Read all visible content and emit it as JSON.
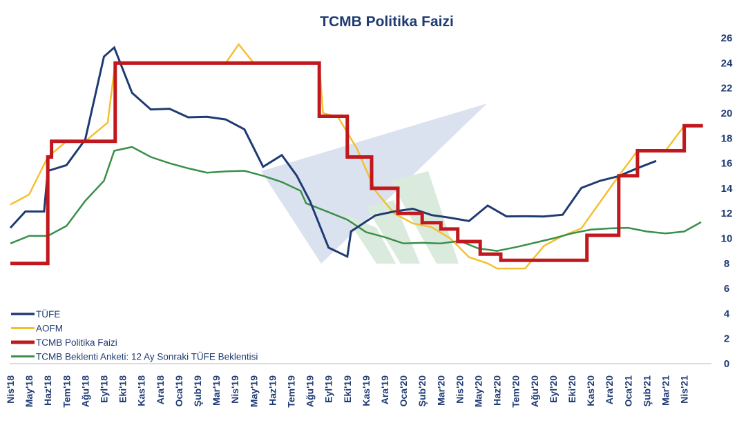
{
  "chart_data": {
    "type": "line",
    "title": "TCMB Politika Faizi",
    "xlabel": "",
    "ylabel": "",
    "ylim": [
      0,
      26
    ],
    "y_ticks": [
      "0",
      "2",
      "4",
      "6",
      "8",
      "10",
      "12",
      "14",
      "16",
      "18",
      "20",
      "22",
      "24",
      "26"
    ],
    "y_axis_side": "right",
    "categories": [
      "Nis'18",
      "May'18",
      "Haz'18",
      "Tem'18",
      "Ağu'18",
      "Eyl'18",
      "Eki'18",
      "Kas'18",
      "Ara'18",
      "Oca'19",
      "Şub'19",
      "Mar'19",
      "Nis'19",
      "May'19",
      "Haz'19",
      "Tem'19",
      "Ağu'19",
      "Eyl'19",
      "Eki'19",
      "Kas'19",
      "Ara'19",
      "Oca'20",
      "Şub'20",
      "Mar'20",
      "Nis'20",
      "May'20",
      "Haz'20",
      "Tem'20",
      "Ağu'20",
      "Eyl'20",
      "Eki'20",
      "Kas'20",
      "Ara'20",
      "Oca'21",
      "Şub'21",
      "Mar'21",
      "Nis'21"
    ],
    "grid": false,
    "legend_position": "bottom-left",
    "series": [
      {
        "name": "TÜFE",
        "color": "#1f3b73",
        "stroke_width": 3,
        "points": [
          [
            0,
            10.85
          ],
          [
            0.8,
            12.15
          ],
          [
            1.8,
            12.15
          ],
          [
            2.0,
            15.39
          ],
          [
            3.0,
            15.85
          ],
          [
            4.0,
            17.9
          ],
          [
            5.0,
            24.52
          ],
          [
            5.55,
            25.24
          ],
          [
            6.5,
            21.62
          ],
          [
            7.5,
            20.3
          ],
          [
            8.5,
            20.35
          ],
          [
            9.5,
            19.67
          ],
          [
            10.5,
            19.71
          ],
          [
            11.5,
            19.5
          ],
          [
            12.5,
            18.71
          ],
          [
            13.5,
            15.72
          ],
          [
            14.5,
            16.65
          ],
          [
            15.3,
            15.01
          ],
          [
            16.0,
            13.0
          ],
          [
            17.0,
            9.26
          ],
          [
            18.0,
            8.55
          ],
          [
            18.2,
            10.56
          ],
          [
            19.5,
            11.84
          ],
          [
            20.5,
            12.15
          ],
          [
            21.5,
            12.37
          ],
          [
            22.5,
            11.86
          ],
          [
            23.5,
            11.65
          ],
          [
            24.5,
            11.39
          ],
          [
            25.5,
            12.62
          ],
          [
            26.5,
            11.76
          ],
          [
            27.5,
            11.77
          ],
          [
            28.5,
            11.75
          ],
          [
            29.5,
            11.89
          ],
          [
            30.5,
            14.03
          ],
          [
            31.5,
            14.6
          ],
          [
            32.5,
            14.97
          ],
          [
            33.5,
            15.61
          ],
          [
            34.5,
            16.19
          ]
        ]
      },
      {
        "name": "AOFM",
        "color": "#f5c02f",
        "stroke_width": 2.5,
        "points": [
          [
            0,
            12.7
          ],
          [
            1,
            13.5
          ],
          [
            2.0,
            16.5
          ],
          [
            3.0,
            17.75
          ],
          [
            4.0,
            17.75
          ],
          [
            5.2,
            19.25
          ],
          [
            5.6,
            24.0
          ],
          [
            11.5,
            24.0
          ],
          [
            12.2,
            25.5
          ],
          [
            13.0,
            24.0
          ],
          [
            16.5,
            24.0
          ],
          [
            16.7,
            20.0
          ],
          [
            17.5,
            19.7
          ],
          [
            18.5,
            17.2
          ],
          [
            19.5,
            13.8
          ],
          [
            20.5,
            12.0
          ],
          [
            21.5,
            11.2
          ],
          [
            22.5,
            10.9
          ],
          [
            23.5,
            10.0
          ],
          [
            24.5,
            8.5
          ],
          [
            25.5,
            8.0
          ],
          [
            26.0,
            7.6
          ],
          [
            27.5,
            7.6
          ],
          [
            28.5,
            9.4
          ],
          [
            29.5,
            10.2
          ],
          [
            30.5,
            10.8
          ],
          [
            31.5,
            12.9
          ],
          [
            32.5,
            15.0
          ],
          [
            33.5,
            17.0
          ],
          [
            35.0,
            17.0
          ],
          [
            36.0,
            19.0
          ]
        ]
      },
      {
        "name": "TCMB Politika Faizi",
        "color": "#c0181c",
        "stroke_width": 5,
        "points": [
          [
            0,
            8.0
          ],
          [
            2.0,
            8.0
          ],
          [
            2.0,
            16.5
          ],
          [
            2.2,
            16.5
          ],
          [
            2.2,
            17.75
          ],
          [
            5.6,
            17.75
          ],
          [
            5.6,
            24.0
          ],
          [
            16.5,
            24.0
          ],
          [
            16.5,
            19.75
          ],
          [
            18.0,
            19.75
          ],
          [
            18.0,
            16.5
          ],
          [
            19.3,
            16.5
          ],
          [
            19.3,
            14.0
          ],
          [
            20.7,
            14.0
          ],
          [
            20.7,
            12.0
          ],
          [
            22.0,
            12.0
          ],
          [
            22.0,
            11.25
          ],
          [
            23.0,
            11.25
          ],
          [
            23.0,
            10.75
          ],
          [
            23.9,
            10.75
          ],
          [
            23.9,
            9.75
          ],
          [
            25.1,
            9.75
          ],
          [
            25.1,
            8.75
          ],
          [
            26.2,
            8.75
          ],
          [
            26.2,
            8.25
          ],
          [
            30.8,
            8.25
          ],
          [
            30.8,
            10.25
          ],
          [
            32.5,
            10.25
          ],
          [
            32.5,
            15.0
          ],
          [
            33.5,
            15.0
          ],
          [
            33.5,
            17.0
          ],
          [
            36.0,
            17.0
          ],
          [
            36.0,
            19.0
          ],
          [
            37.0,
            19.0
          ]
        ]
      },
      {
        "name": "TCMB Beklenti Anketi: 12 Ay Sonraki TÜFE Beklentisi",
        "color": "#3a8f4a",
        "stroke_width": 2.5,
        "points": [
          [
            0,
            9.6
          ],
          [
            1,
            10.2
          ],
          [
            2,
            10.2
          ],
          [
            3,
            11.0
          ],
          [
            4,
            13.0
          ],
          [
            5,
            14.6
          ],
          [
            5.55,
            17.0
          ],
          [
            6.5,
            17.3
          ],
          [
            7.5,
            16.5
          ],
          [
            8.5,
            16.0
          ],
          [
            9.5,
            15.6
          ],
          [
            10.5,
            15.25
          ],
          [
            11.5,
            15.35
          ],
          [
            12.5,
            15.4
          ],
          [
            13.5,
            15.0
          ],
          [
            14.5,
            14.5
          ],
          [
            15.5,
            13.8
          ],
          [
            15.8,
            12.8
          ],
          [
            17.0,
            12.1
          ],
          [
            18.0,
            11.5
          ],
          [
            19.0,
            10.5
          ],
          [
            20.0,
            10.1
          ],
          [
            21.0,
            9.6
          ],
          [
            22.0,
            9.65
          ],
          [
            23.0,
            9.6
          ],
          [
            24.0,
            9.8
          ],
          [
            25.0,
            9.2
          ],
          [
            26.0,
            9.0
          ],
          [
            27.0,
            9.3
          ],
          [
            28.0,
            9.65
          ],
          [
            29.0,
            10.0
          ],
          [
            30.0,
            10.4
          ],
          [
            31.0,
            10.7
          ],
          [
            32.0,
            10.8
          ],
          [
            33.0,
            10.85
          ],
          [
            34.0,
            10.55
          ],
          [
            35.0,
            10.4
          ],
          [
            36.0,
            10.55
          ],
          [
            36.9,
            11.3
          ]
        ]
      }
    ]
  }
}
